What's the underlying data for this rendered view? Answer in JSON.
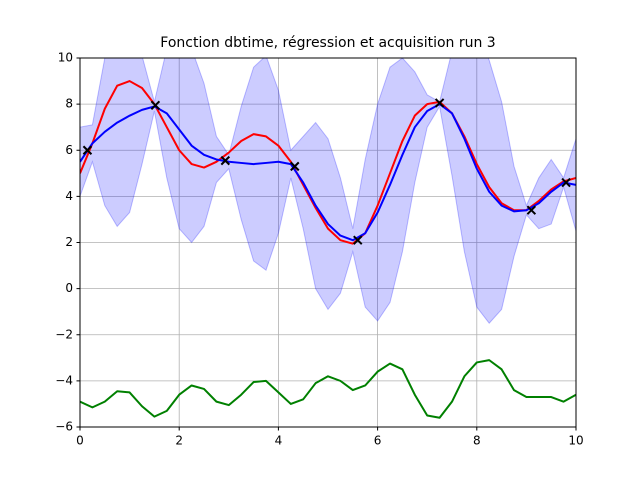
{
  "chart_data": {
    "type": "line",
    "title": "Fonction dbtime, régression et acquisition run 3",
    "grid": true,
    "xlim": [
      0,
      10
    ],
    "ylim": [
      -6,
      10
    ],
    "xticks": [
      0,
      2,
      4,
      6,
      8,
      10
    ],
    "yticks": [
      {
        "value": -6,
        "label": "−6"
      },
      {
        "value": -4,
        "label": "−4"
      },
      {
        "value": -2,
        "label": "−2"
      },
      0,
      2,
      4,
      6,
      8,
      10
    ],
    "x": [
      0,
      0.25,
      0.5,
      0.75,
      1,
      1.25,
      1.5,
      1.75,
      2,
      2.25,
      2.5,
      2.75,
      3,
      3.25,
      3.5,
      3.75,
      4,
      4.25,
      4.5,
      4.75,
      5,
      5.25,
      5.5,
      5.75,
      6,
      6.25,
      6.5,
      6.75,
      7,
      7.25,
      7.5,
      7.75,
      8,
      8.25,
      8.5,
      8.75,
      9,
      9.25,
      9.5,
      9.75,
      10
    ],
    "band": {
      "color": "#0000ff",
      "lower": [
        4.0,
        5.5,
        3.6,
        2.7,
        3.3,
        5.4,
        7.7,
        4.8,
        2.6,
        2.0,
        2.7,
        4.6,
        5.2,
        3.0,
        1.2,
        0.8,
        2.4,
        4.8,
        2.6,
        0.0,
        -0.9,
        -0.2,
        1.6,
        -0.8,
        -1.4,
        -0.6,
        1.6,
        4.6,
        7.0,
        7.9,
        4.9,
        1.6,
        -0.8,
        -1.5,
        -0.9,
        1.4,
        3.2,
        2.6,
        2.8,
        4.4,
        2.5
      ],
      "upper": [
        7.0,
        7.1,
        10.0,
        11.7,
        11.7,
        10.1,
        8.1,
        10.4,
        11.2,
        10.4,
        8.9,
        6.6,
        5.8,
        7.9,
        9.6,
        10.1,
        8.6,
        6.0,
        6.6,
        7.2,
        6.5,
        4.8,
        2.6,
        5.6,
        8.0,
        9.6,
        10.0,
        9.4,
        8.4,
        8.1,
        10.3,
        11.4,
        11.2,
        9.9,
        8.1,
        5.3,
        3.6,
        4.8,
        5.6,
        4.8,
        6.5
      ]
    },
    "series": [
      {
        "color": "#ff0000",
        "values": [
          5.0,
          6.3,
          7.8,
          8.8,
          9.0,
          8.7,
          8.0,
          7.0,
          6.0,
          5.4,
          5.25,
          5.5,
          5.9,
          6.4,
          6.7,
          6.6,
          6.2,
          5.5,
          4.5,
          3.5,
          2.6,
          2.1,
          1.95,
          2.4,
          3.6,
          5.0,
          6.4,
          7.5,
          8.0,
          8.1,
          7.6,
          6.6,
          5.4,
          4.4,
          3.7,
          3.4,
          3.4,
          3.8,
          4.3,
          4.65,
          4.8
        ]
      },
      {
        "color": "#0000ff",
        "values": [
          5.5,
          6.3,
          6.8,
          7.2,
          7.5,
          7.75,
          7.9,
          7.6,
          6.9,
          6.2,
          5.8,
          5.6,
          5.5,
          5.45,
          5.4,
          5.45,
          5.5,
          5.4,
          4.6,
          3.6,
          2.8,
          2.3,
          2.1,
          2.4,
          3.3,
          4.5,
          5.8,
          7.0,
          7.7,
          8.0,
          7.6,
          6.5,
          5.2,
          4.2,
          3.6,
          3.35,
          3.4,
          3.7,
          4.2,
          4.6,
          4.5
        ]
      },
      {
        "color": "#008000",
        "values": [
          -4.9,
          -5.15,
          -4.9,
          -4.45,
          -4.5,
          -5.1,
          -5.55,
          -5.3,
          -4.6,
          -4.2,
          -4.35,
          -4.9,
          -5.05,
          -4.6,
          -4.05,
          -4.0,
          -4.5,
          -5.0,
          -4.8,
          -4.1,
          -3.8,
          -4.0,
          -4.4,
          -4.2,
          -3.6,
          -3.25,
          -3.5,
          -4.6,
          -5.5,
          -5.6,
          -4.9,
          -3.8,
          -3.2,
          -3.1,
          -3.5,
          -4.4,
          -4.7,
          -4.7,
          -4.7,
          -4.9,
          -4.6
        ]
      }
    ],
    "points": {
      "color": "#000000",
      "x": [
        0.15,
        1.52,
        2.93,
        4.33,
        5.6,
        7.25,
        9.1,
        9.8
      ],
      "y": [
        6.0,
        7.95,
        5.55,
        5.3,
        2.1,
        8.05,
        3.4,
        4.6
      ]
    }
  }
}
